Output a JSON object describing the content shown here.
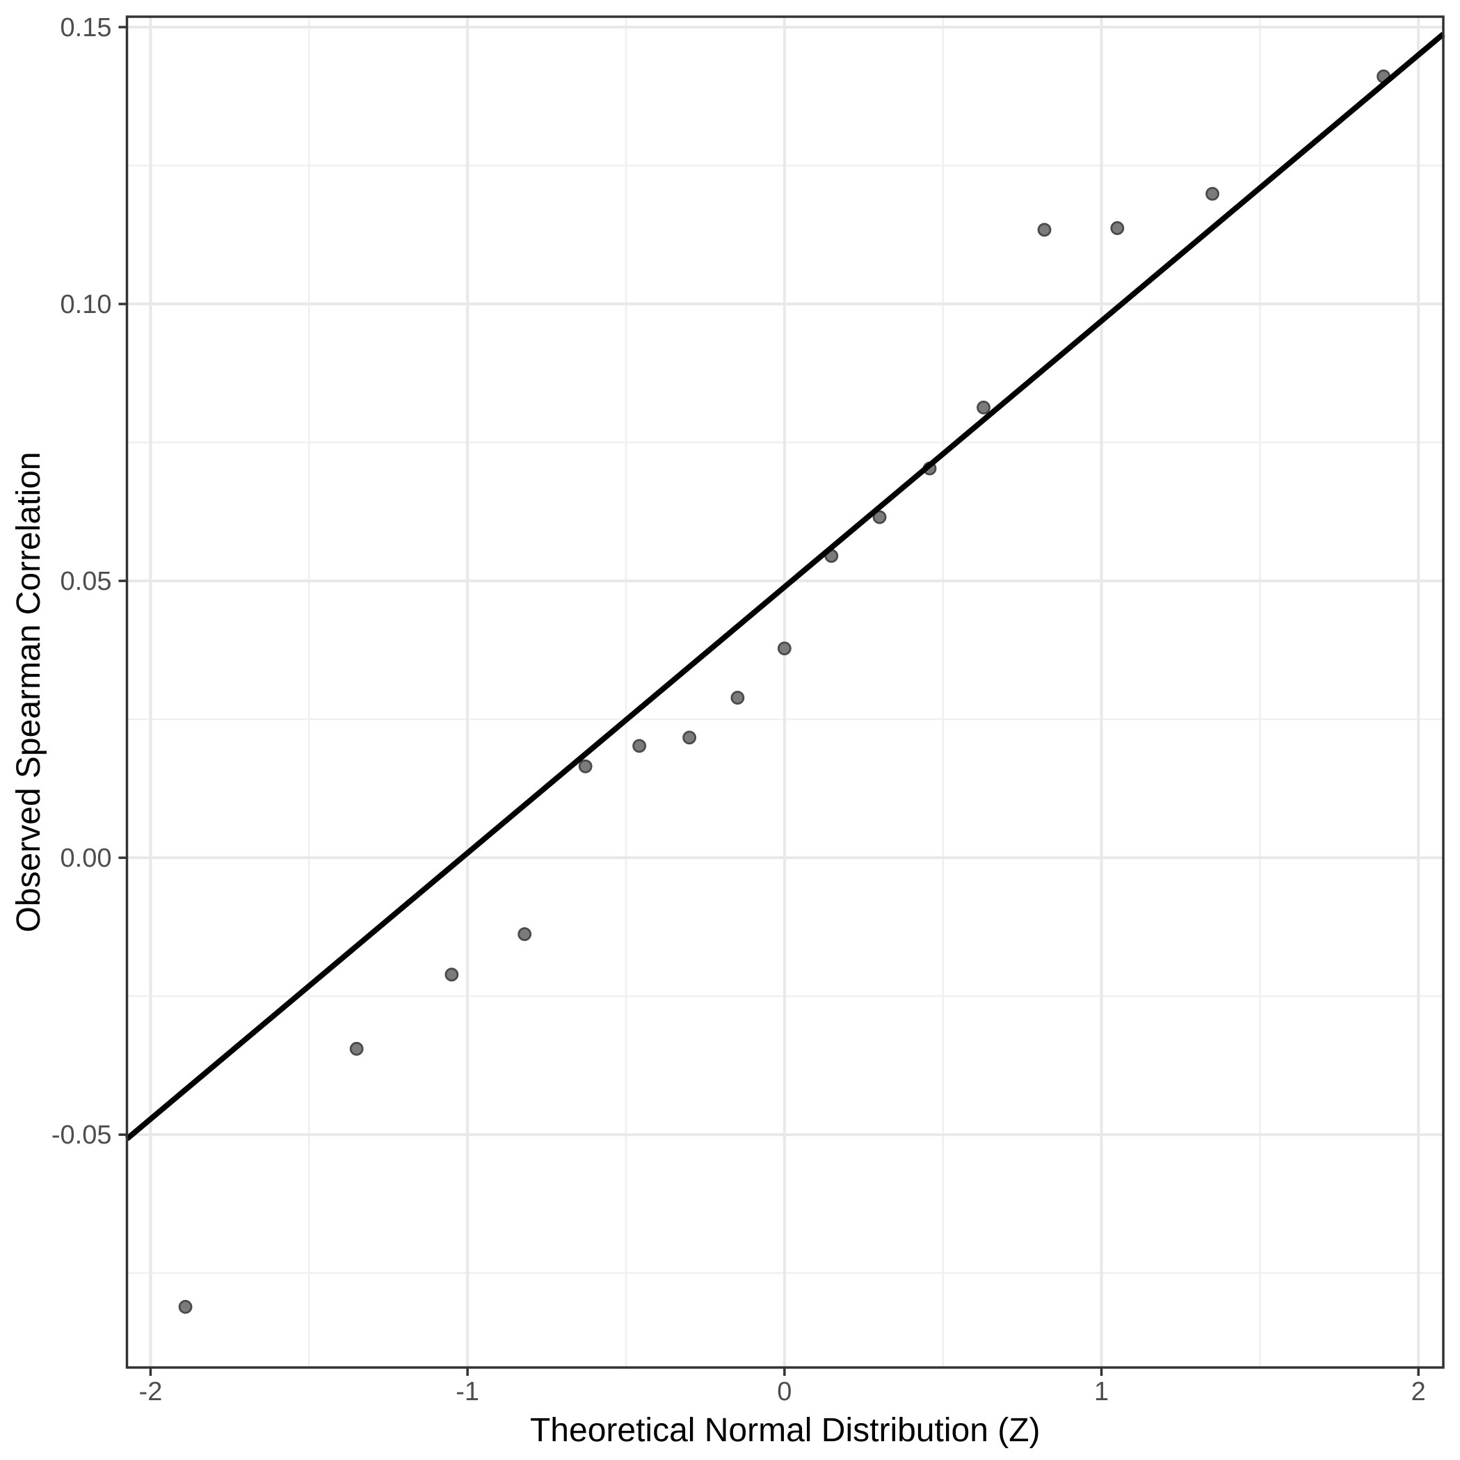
{
  "figure": {
    "background": "#ffffff",
    "description": "Normal Q-Q plot of observed Spearman correlations with theoretical quantile reference line"
  },
  "chart_data": {
    "type": "scatter",
    "title": "",
    "xlabel": "Theoretical Normal Distribution (Z)",
    "ylabel": "Observed Spearman Correlation",
    "x_tick_values": [
      -2,
      -1,
      0,
      1,
      2
    ],
    "x_tick_labels": [
      "-2",
      "-1",
      "0",
      "1",
      "2"
    ],
    "y_tick_values": [
      0.15,
      0.1,
      0.05,
      0.0,
      -0.05
    ],
    "y_tick_labels": [
      "0.15",
      "0.10",
      "0.05",
      "0.00",
      "-0.05"
    ],
    "xlim": [
      -2.0745,
      2.0785
    ],
    "ylim": [
      -0.09205,
      0.15188
    ],
    "grid": "major and minor gridlines, light grey on white",
    "legend": "none",
    "point_count": 17,
    "points": [
      {
        "z": -1.89,
        "rho": -0.0811
      },
      {
        "z": -1.35,
        "rho": -0.0345
      },
      {
        "z": -1.05,
        "rho": -0.0211
      },
      {
        "z": -0.82,
        "rho": -0.0138
      },
      {
        "z": -0.628,
        "rho": 0.0165
      },
      {
        "z": -0.458,
        "rho": 0.0202
      },
      {
        "z": -0.3,
        "rho": 0.0217
      },
      {
        "z": -0.148,
        "rho": 0.0289
      },
      {
        "z": 0.0,
        "rho": 0.0378
      },
      {
        "z": 0.148,
        "rho": 0.0545
      },
      {
        "z": 0.3,
        "rho": 0.0615
      },
      {
        "z": 0.458,
        "rho": 0.0703
      },
      {
        "z": 0.628,
        "rho": 0.0813
      },
      {
        "z": 0.82,
        "rho": 0.1134
      },
      {
        "z": 1.05,
        "rho": 0.1137
      },
      {
        "z": 1.35,
        "rho": 0.1199
      },
      {
        "z": 1.89,
        "rho": 0.1411
      }
    ],
    "reference_line": {
      "type": "qqline",
      "slope": 0.04804,
      "intercept": 0.0489
    },
    "colors": {
      "point_fill": "#7b7b7b",
      "point_stroke": "#4a4a4a",
      "reference_line": "#000000",
      "grid_major": "#e8e8e8",
      "grid_minor": "#f0f0f0",
      "panel_border": "#333333",
      "tick_label": "#4d4d4d",
      "axis_title": "#000000",
      "background": "#ffffff"
    }
  }
}
